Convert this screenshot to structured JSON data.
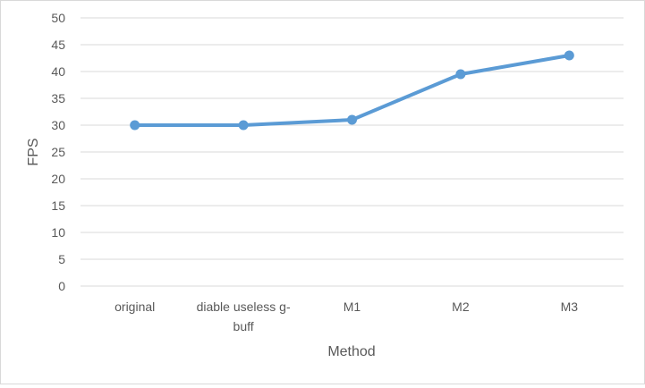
{
  "chart_data": {
    "type": "line",
    "categories": [
      [
        "original"
      ],
      [
        "diable useless g-",
        "buff"
      ],
      [
        "M1"
      ],
      [
        "M2"
      ],
      [
        "M3"
      ]
    ],
    "series": [
      {
        "values": [
          30,
          30,
          31,
          39.5,
          43
        ],
        "color": "#5b9bd5"
      }
    ],
    "xlabel": "Method",
    "ylabel": "FPS",
    "ylim": [
      0,
      50
    ],
    "y_ticks": [
      0,
      5,
      10,
      15,
      20,
      25,
      30,
      35,
      40,
      45,
      50
    ],
    "grid": true,
    "gridline_color": "#d9d9d9",
    "legend": false
  }
}
